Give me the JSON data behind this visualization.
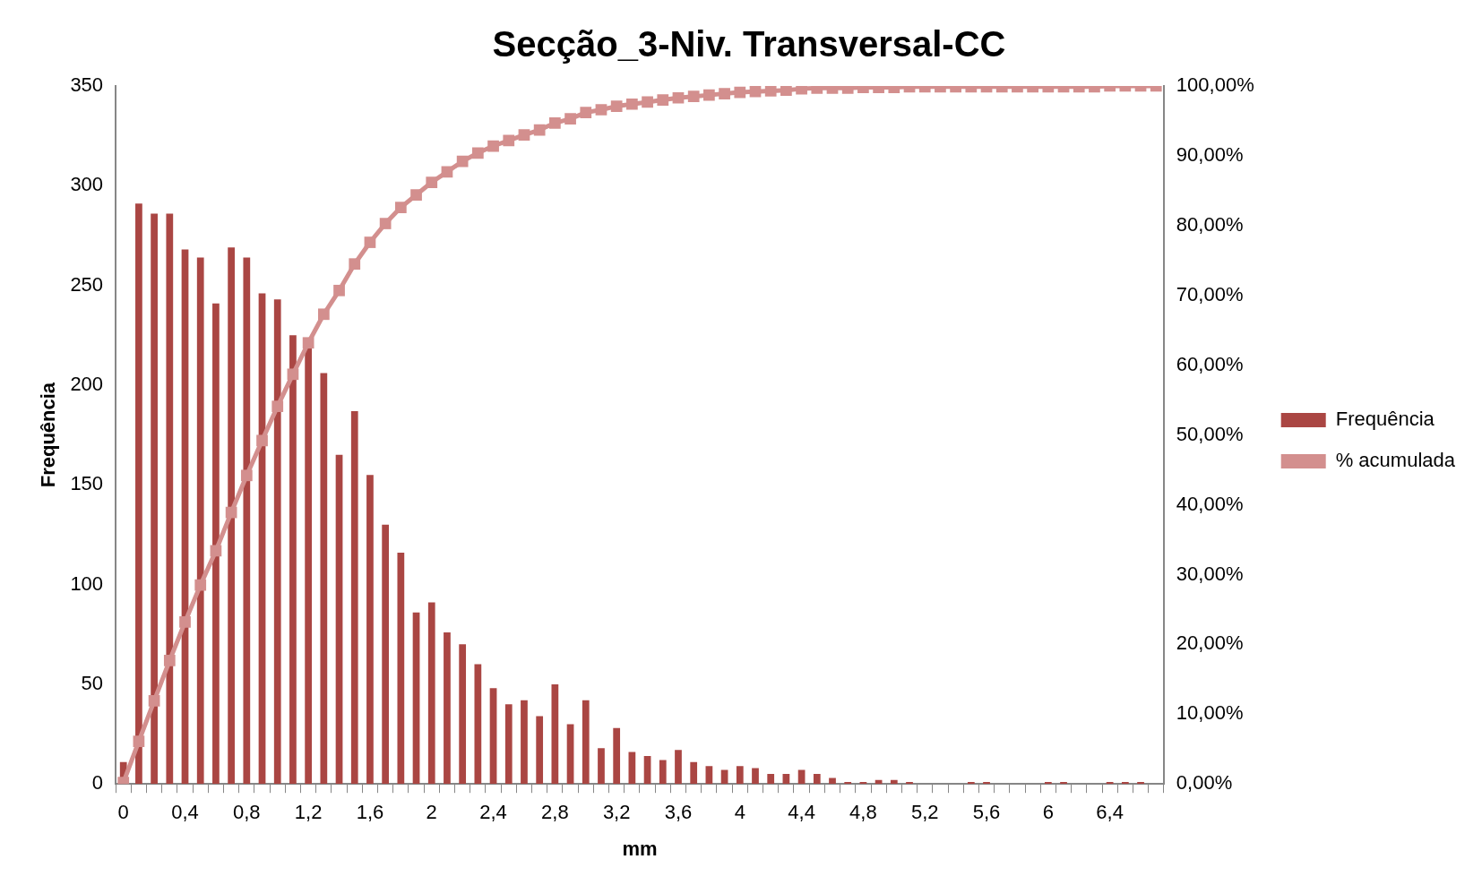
{
  "chart_data": {
    "type": "bar",
    "title": "Secção_3-Niv. Transversal-CC",
    "xlabel": "mm",
    "ylabel": "Frequência",
    "categories": [
      "0",
      null,
      null,
      null,
      "0,4",
      null,
      null,
      null,
      "0,8",
      null,
      null,
      null,
      "1,2",
      null,
      null,
      null,
      "1,6",
      null,
      null,
      null,
      "2",
      null,
      null,
      null,
      "2,4",
      null,
      null,
      null,
      "2,8",
      null,
      null,
      null,
      "3,2",
      null,
      null,
      null,
      "3,6",
      null,
      null,
      null,
      "4",
      null,
      null,
      null,
      "4,4",
      null,
      null,
      null,
      "4,8",
      null,
      null,
      null,
      "5,2",
      null,
      null,
      null,
      "5,6",
      null,
      null,
      null,
      "6",
      null,
      null,
      null,
      "6,4",
      null,
      null,
      null
    ],
    "series": [
      {
        "name": "Frequência",
        "color": "#aa4643",
        "values": [
          11,
          291,
          286,
          286,
          268,
          264,
          241,
          269,
          264,
          246,
          243,
          225,
          220,
          206,
          165,
          187,
          155,
          130,
          116,
          86,
          91,
          76,
          70,
          60,
          48,
          40,
          42,
          34,
          50,
          30,
          42,
          18,
          28,
          16,
          14,
          12,
          17,
          11,
          9,
          7,
          9,
          8,
          5,
          5,
          7,
          5,
          3,
          1,
          1,
          2,
          2,
          1,
          0,
          0,
          0,
          1,
          1,
          0,
          0,
          0,
          1,
          1,
          0,
          0,
          1,
          1,
          1,
          0
        ]
      },
      {
        "name": "% acumulada",
        "type": "line",
        "axis": "y2",
        "color": "#d38f8e",
        "values": [
          0.2,
          6.1,
          11.9,
          17.7,
          23.2,
          28.5,
          33.4,
          38.9,
          44.2,
          49.2,
          54.1,
          58.7,
          63.2,
          67.3,
          70.7,
          74.5,
          77.6,
          80.3,
          82.6,
          84.4,
          86.2,
          87.7,
          89.2,
          90.4,
          91.4,
          92.2,
          93.0,
          93.7,
          94.7,
          95.3,
          96.2,
          96.6,
          97.1,
          97.4,
          97.7,
          98.0,
          98.3,
          98.5,
          98.7,
          98.9,
          99.1,
          99.2,
          99.3,
          99.4,
          99.6,
          99.7,
          99.7,
          99.7,
          99.8,
          99.8,
          99.8,
          99.9,
          99.9,
          99.9,
          99.9,
          99.9,
          99.9,
          99.9,
          99.9,
          99.9,
          99.9,
          99.9,
          99.9,
          99.9,
          100,
          100,
          100,
          100
        ]
      }
    ],
    "ylim": [
      0,
      350
    ],
    "yticks": [
      0,
      50,
      100,
      150,
      200,
      250,
      300,
      350
    ],
    "y2lim": [
      0,
      100
    ],
    "y2ticks": [
      {
        "value": 0,
        "label": "0,00%"
      },
      {
        "value": 10,
        "label": "10,00%"
      },
      {
        "value": 20,
        "label": "20,00%"
      },
      {
        "value": 30,
        "label": "30,00%"
      },
      {
        "value": 40,
        "label": "40,00%"
      },
      {
        "value": 50,
        "label": "50,00%"
      },
      {
        "value": 60,
        "label": "60,00%"
      },
      {
        "value": 70,
        "label": "70,00%"
      },
      {
        "value": 80,
        "label": "80,00%"
      },
      {
        "value": 90,
        "label": "90,00%"
      },
      {
        "value": 100,
        "label": "100,00%"
      }
    ],
    "legend": "right",
    "marker": "square"
  }
}
